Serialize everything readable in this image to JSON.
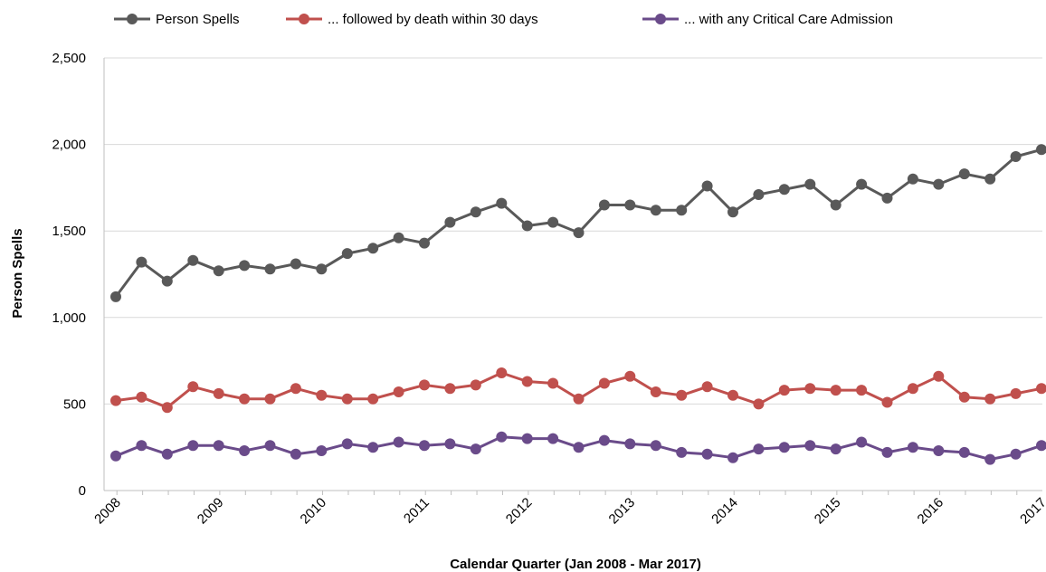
{
  "chart_data": {
    "type": "line",
    "title": "",
    "xlabel": "Calendar Quarter (Jan 2008 - Mar 2017)",
    "ylabel": "Person Spells",
    "ylim": [
      0,
      2500
    ],
    "yticks": [
      0,
      500,
      1000,
      1500,
      2000,
      2500
    ],
    "ytick_labels": [
      "0",
      "500",
      "1,000",
      "1,500",
      "2,000",
      "2,500"
    ],
    "xtick_labels": [
      "2008",
      "2009",
      "2010",
      "2011",
      "2012",
      "2013",
      "2014",
      "2015",
      "2016",
      "2017"
    ],
    "grid": true,
    "legend_position": "top",
    "series": [
      {
        "name": "Person Spells",
        "color": "#595959",
        "values": [
          1120,
          1320,
          1210,
          1330,
          1270,
          1300,
          1280,
          1310,
          1280,
          1370,
          1400,
          1460,
          1430,
          1550,
          1610,
          1660,
          1530,
          1550,
          1490,
          1650,
          1650,
          1620,
          1620,
          1760,
          1610,
          1710,
          1740,
          1770,
          1650,
          1770,
          1690,
          1800,
          1770,
          1830,
          1800,
          1930,
          1970
        ]
      },
      {
        "name": "... followed by death within 30 days",
        "color": "#c0504d",
        "values": [
          520,
          540,
          480,
          600,
          560,
          530,
          530,
          590,
          550,
          530,
          530,
          570,
          610,
          590,
          610,
          680,
          630,
          620,
          530,
          620,
          660,
          570,
          550,
          600,
          550,
          500,
          580,
          590,
          580,
          580,
          510,
          590,
          660,
          540,
          530,
          560,
          590
        ]
      },
      {
        "name": "... with any Critical Care Admission",
        "color": "#6a4b8a",
        "values": [
          200,
          260,
          210,
          260,
          260,
          230,
          260,
          210,
          230,
          270,
          250,
          280,
          260,
          270,
          240,
          310,
          300,
          300,
          250,
          290,
          270,
          260,
          220,
          210,
          190,
          240,
          250,
          260,
          240,
          280,
          220,
          250,
          230,
          220,
          180,
          210,
          260
        ]
      }
    ]
  }
}
